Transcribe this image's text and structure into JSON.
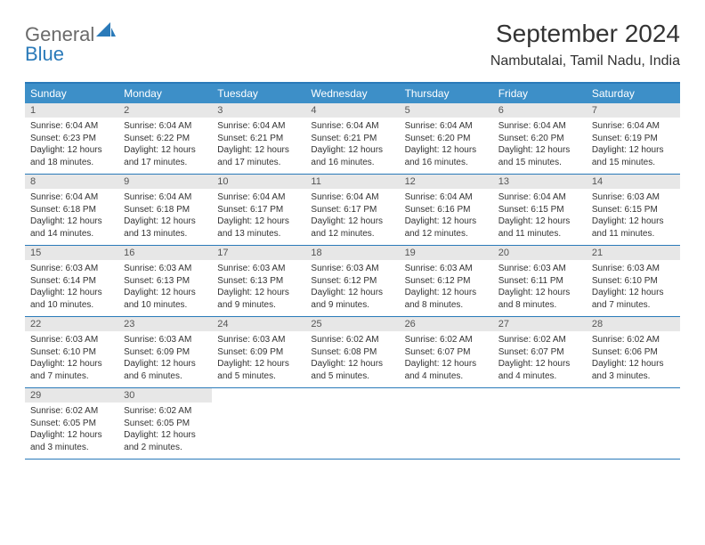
{
  "logo": {
    "general": "General",
    "blue": "Blue"
  },
  "title": "September 2024",
  "location": "Nambutalai, Tamil Nadu, India",
  "colors": {
    "header_bg": "#3d8fc8",
    "border": "#2a7ab9",
    "daynum_bg": "#e7e7e7",
    "text": "#333333",
    "logo_gray": "#6a6a6a",
    "logo_blue": "#2a7ab9"
  },
  "day_headers": [
    "Sunday",
    "Monday",
    "Tuesday",
    "Wednesday",
    "Thursday",
    "Friday",
    "Saturday"
  ],
  "weeks": [
    [
      {
        "n": "1",
        "sr": "Sunrise: 6:04 AM",
        "ss": "Sunset: 6:23 PM",
        "d1": "Daylight: 12 hours",
        "d2": "and 18 minutes."
      },
      {
        "n": "2",
        "sr": "Sunrise: 6:04 AM",
        "ss": "Sunset: 6:22 PM",
        "d1": "Daylight: 12 hours",
        "d2": "and 17 minutes."
      },
      {
        "n": "3",
        "sr": "Sunrise: 6:04 AM",
        "ss": "Sunset: 6:21 PM",
        "d1": "Daylight: 12 hours",
        "d2": "and 17 minutes."
      },
      {
        "n": "4",
        "sr": "Sunrise: 6:04 AM",
        "ss": "Sunset: 6:21 PM",
        "d1": "Daylight: 12 hours",
        "d2": "and 16 minutes."
      },
      {
        "n": "5",
        "sr": "Sunrise: 6:04 AM",
        "ss": "Sunset: 6:20 PM",
        "d1": "Daylight: 12 hours",
        "d2": "and 16 minutes."
      },
      {
        "n": "6",
        "sr": "Sunrise: 6:04 AM",
        "ss": "Sunset: 6:20 PM",
        "d1": "Daylight: 12 hours",
        "d2": "and 15 minutes."
      },
      {
        "n": "7",
        "sr": "Sunrise: 6:04 AM",
        "ss": "Sunset: 6:19 PM",
        "d1": "Daylight: 12 hours",
        "d2": "and 15 minutes."
      }
    ],
    [
      {
        "n": "8",
        "sr": "Sunrise: 6:04 AM",
        "ss": "Sunset: 6:18 PM",
        "d1": "Daylight: 12 hours",
        "d2": "and 14 minutes."
      },
      {
        "n": "9",
        "sr": "Sunrise: 6:04 AM",
        "ss": "Sunset: 6:18 PM",
        "d1": "Daylight: 12 hours",
        "d2": "and 13 minutes."
      },
      {
        "n": "10",
        "sr": "Sunrise: 6:04 AM",
        "ss": "Sunset: 6:17 PM",
        "d1": "Daylight: 12 hours",
        "d2": "and 13 minutes."
      },
      {
        "n": "11",
        "sr": "Sunrise: 6:04 AM",
        "ss": "Sunset: 6:17 PM",
        "d1": "Daylight: 12 hours",
        "d2": "and 12 minutes."
      },
      {
        "n": "12",
        "sr": "Sunrise: 6:04 AM",
        "ss": "Sunset: 6:16 PM",
        "d1": "Daylight: 12 hours",
        "d2": "and 12 minutes."
      },
      {
        "n": "13",
        "sr": "Sunrise: 6:04 AM",
        "ss": "Sunset: 6:15 PM",
        "d1": "Daylight: 12 hours",
        "d2": "and 11 minutes."
      },
      {
        "n": "14",
        "sr": "Sunrise: 6:03 AM",
        "ss": "Sunset: 6:15 PM",
        "d1": "Daylight: 12 hours",
        "d2": "and 11 minutes."
      }
    ],
    [
      {
        "n": "15",
        "sr": "Sunrise: 6:03 AM",
        "ss": "Sunset: 6:14 PM",
        "d1": "Daylight: 12 hours",
        "d2": "and 10 minutes."
      },
      {
        "n": "16",
        "sr": "Sunrise: 6:03 AM",
        "ss": "Sunset: 6:13 PM",
        "d1": "Daylight: 12 hours",
        "d2": "and 10 minutes."
      },
      {
        "n": "17",
        "sr": "Sunrise: 6:03 AM",
        "ss": "Sunset: 6:13 PM",
        "d1": "Daylight: 12 hours",
        "d2": "and 9 minutes."
      },
      {
        "n": "18",
        "sr": "Sunrise: 6:03 AM",
        "ss": "Sunset: 6:12 PM",
        "d1": "Daylight: 12 hours",
        "d2": "and 9 minutes."
      },
      {
        "n": "19",
        "sr": "Sunrise: 6:03 AM",
        "ss": "Sunset: 6:12 PM",
        "d1": "Daylight: 12 hours",
        "d2": "and 8 minutes."
      },
      {
        "n": "20",
        "sr": "Sunrise: 6:03 AM",
        "ss": "Sunset: 6:11 PM",
        "d1": "Daylight: 12 hours",
        "d2": "and 8 minutes."
      },
      {
        "n": "21",
        "sr": "Sunrise: 6:03 AM",
        "ss": "Sunset: 6:10 PM",
        "d1": "Daylight: 12 hours",
        "d2": "and 7 minutes."
      }
    ],
    [
      {
        "n": "22",
        "sr": "Sunrise: 6:03 AM",
        "ss": "Sunset: 6:10 PM",
        "d1": "Daylight: 12 hours",
        "d2": "and 7 minutes."
      },
      {
        "n": "23",
        "sr": "Sunrise: 6:03 AM",
        "ss": "Sunset: 6:09 PM",
        "d1": "Daylight: 12 hours",
        "d2": "and 6 minutes."
      },
      {
        "n": "24",
        "sr": "Sunrise: 6:03 AM",
        "ss": "Sunset: 6:09 PM",
        "d1": "Daylight: 12 hours",
        "d2": "and 5 minutes."
      },
      {
        "n": "25",
        "sr": "Sunrise: 6:02 AM",
        "ss": "Sunset: 6:08 PM",
        "d1": "Daylight: 12 hours",
        "d2": "and 5 minutes."
      },
      {
        "n": "26",
        "sr": "Sunrise: 6:02 AM",
        "ss": "Sunset: 6:07 PM",
        "d1": "Daylight: 12 hours",
        "d2": "and 4 minutes."
      },
      {
        "n": "27",
        "sr": "Sunrise: 6:02 AM",
        "ss": "Sunset: 6:07 PM",
        "d1": "Daylight: 12 hours",
        "d2": "and 4 minutes."
      },
      {
        "n": "28",
        "sr": "Sunrise: 6:02 AM",
        "ss": "Sunset: 6:06 PM",
        "d1": "Daylight: 12 hours",
        "d2": "and 3 minutes."
      }
    ],
    [
      {
        "n": "29",
        "sr": "Sunrise: 6:02 AM",
        "ss": "Sunset: 6:05 PM",
        "d1": "Daylight: 12 hours",
        "d2": "and 3 minutes."
      },
      {
        "n": "30",
        "sr": "Sunrise: 6:02 AM",
        "ss": "Sunset: 6:05 PM",
        "d1": "Daylight: 12 hours",
        "d2": "and 2 minutes."
      },
      null,
      null,
      null,
      null,
      null
    ]
  ]
}
